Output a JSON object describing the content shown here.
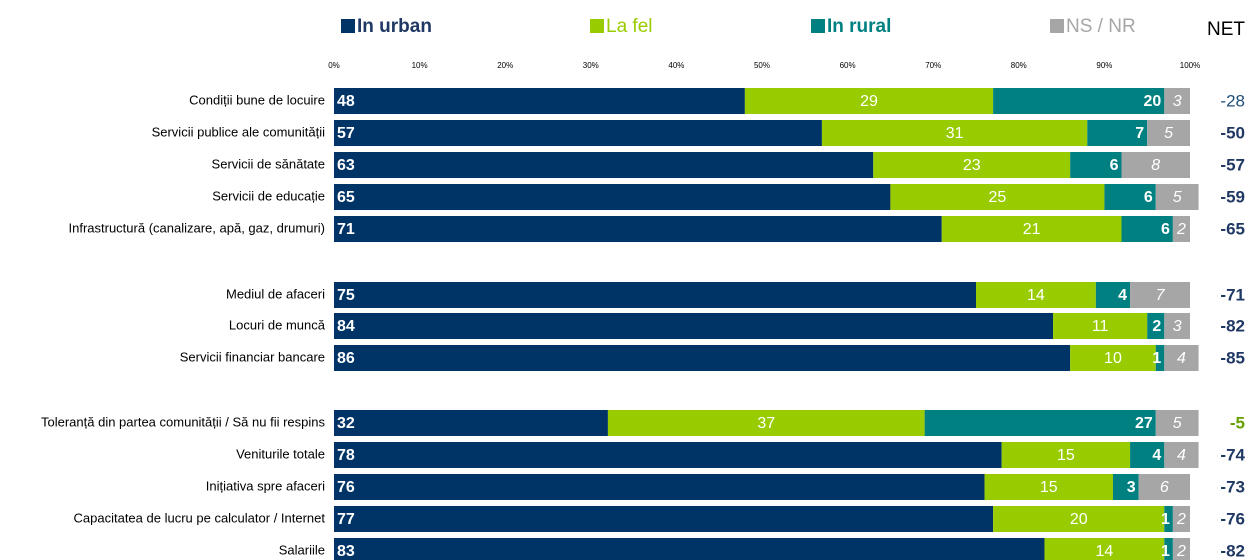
{
  "chart_data": {
    "type": "stacked-bar-horizontal",
    "categories": [
      "Condiții bune de locuire",
      "Servicii publice ale comunității",
      "Servicii de sănătate",
      "Servicii de educație",
      "Infrastructură (canalizare, apă, gaz, drumuri)",
      "Mediul de afaceri",
      "Locuri de muncă",
      "Servicii financiar bancare",
      "Toleranță din partea comunității / Să nu fii respins",
      "Veniturile totale",
      "Inițiativa spre afaceri",
      "Capacitatea de lucru pe calculator / Internet",
      "Salariile"
    ],
    "series": [
      {
        "name": "In urban",
        "color": "#003366",
        "values": [
          48,
          57,
          63,
          65,
          71,
          75,
          84,
          86,
          32,
          78,
          76,
          77,
          83
        ]
      },
      {
        "name": "La fel",
        "color": "#99cc00",
        "values": [
          29,
          31,
          23,
          25,
          21,
          14,
          11,
          10,
          37,
          15,
          15,
          20,
          14
        ]
      },
      {
        "name": "In rural",
        "color": "#008080",
        "values": [
          20,
          7,
          6,
          6,
          6,
          4,
          2,
          1,
          27,
          4,
          3,
          1,
          1
        ]
      },
      {
        "name": "NS / NR",
        "color": "#a6a6a6",
        "values": [
          3,
          5,
          8,
          5,
          2,
          7,
          3,
          4,
          5,
          4,
          6,
          2,
          2
        ]
      }
    ],
    "net_title": "NET",
    "net": [
      -28,
      -50,
      -57,
      -59,
      -65,
      -71,
      -82,
      -85,
      -5,
      -74,
      -73,
      -76,
      -82
    ],
    "net_colors": [
      "#1f4e79",
      "#1f3864",
      "#1f3864",
      "#1f3864",
      "#1f3864",
      "#1f3864",
      "#1f3864",
      "#1f3864",
      "#66a000",
      "#1f3864",
      "#1f3864",
      "#1f3864",
      "#1f3864"
    ],
    "xlim": [
      0,
      100
    ],
    "xticks": [
      {
        "value": 0,
        "label": "0%"
      },
      {
        "value": 10,
        "label": "10%"
      },
      {
        "value": 20,
        "label": "20%"
      },
      {
        "value": 30,
        "label": "30%"
      },
      {
        "value": 40,
        "label": "40%"
      },
      {
        "value": 50,
        "label": "50%"
      },
      {
        "value": 60,
        "label": "60%"
      },
      {
        "value": 70,
        "label": "70%"
      },
      {
        "value": 80,
        "label": "80%"
      },
      {
        "value": 90,
        "label": "90%"
      },
      {
        "value": 100,
        "label": "100%"
      }
    ]
  }
}
